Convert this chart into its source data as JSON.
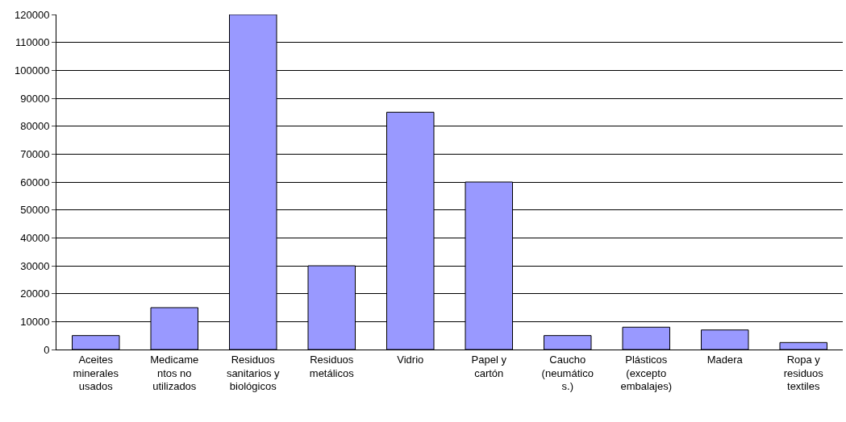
{
  "chart_data": {
    "type": "bar",
    "categories": [
      "Aceites\nminerales\nusados",
      "Medicame\nntos no\nutilizados",
      "Residuos\nsanitarios y\nbiológicos",
      "Residuos\nmetálicos",
      "Vidrio",
      "Papel y\ncartón",
      "Caucho\n(neumático\ns.)",
      "Plásticos\n(excepto\nembalajes)",
      "Madera",
      "Ropa y\nresiduos\ntextiles"
    ],
    "values": [
      5000,
      15000,
      120000,
      30000,
      85000,
      60000,
      5000,
      8000,
      7000,
      2500
    ],
    "color": "#9999ff",
    "ylim": [
      0,
      120000
    ],
    "yticks": [
      0,
      10000,
      20000,
      30000,
      40000,
      50000,
      60000,
      70000,
      80000,
      90000,
      100000,
      110000,
      120000
    ],
    "grid": "y",
    "legend": false
  }
}
